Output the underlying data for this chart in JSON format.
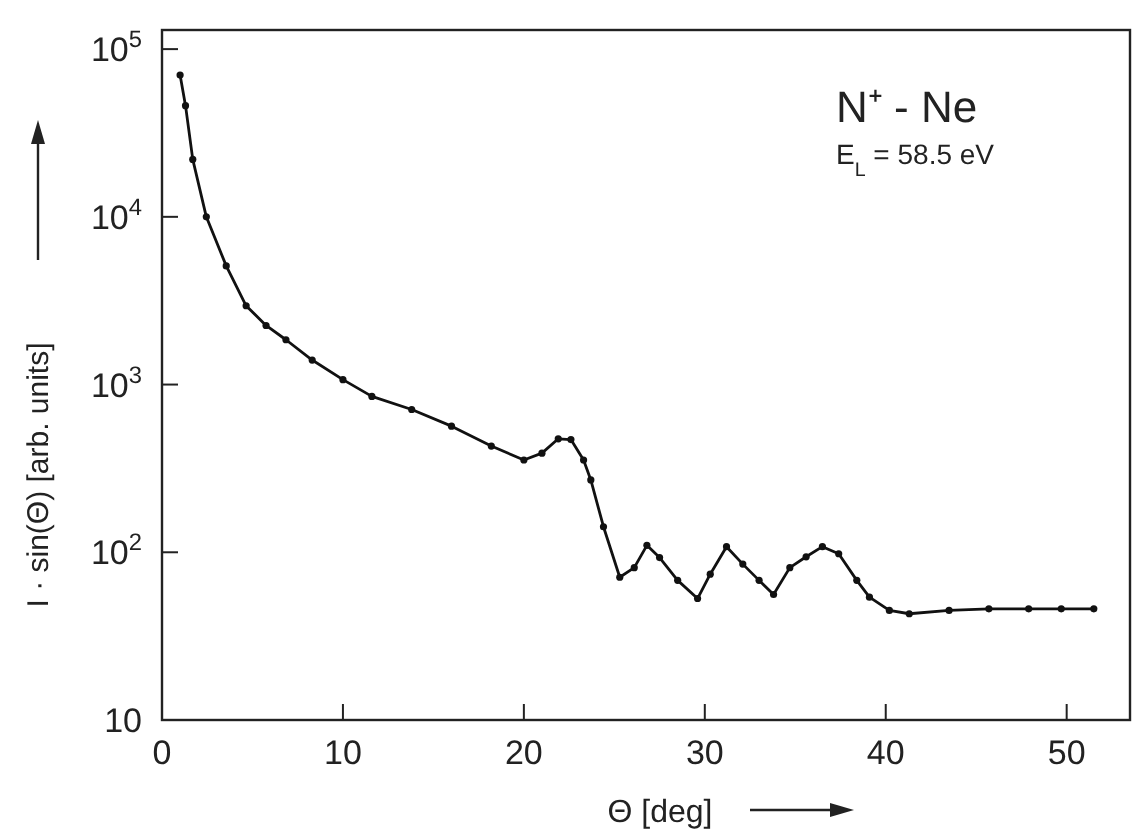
{
  "chart_data": {
    "type": "line",
    "xlabel": "Θ [deg]",
    "ylabel": "I · sin(Θ) [arb. units]",
    "log": "y",
    "xlim": [
      0,
      53.5
    ],
    "ylim": [
      10,
      130000
    ],
    "xticks": [
      0,
      10,
      20,
      30,
      40,
      50
    ],
    "yticks": [
      10,
      {
        "value": 100,
        "label": "10$^{2}$"
      },
      {
        "value": 1000,
        "label": "10$^{3}$"
      },
      {
        "value": 10000,
        "label": "10$^{4}$"
      },
      {
        "value": 100000,
        "label": "10$^{5}$"
      }
    ],
    "annotations": [
      "N⁺ - Ne",
      "E$_{L}$ = 58.5 eV"
    ],
    "marker": "circle",
    "series": [
      {
        "color": "#111111",
        "x": [
          1.0,
          1.3,
          1.7,
          2.45,
          3.55,
          4.65,
          5.75,
          6.85,
          8.3,
          10,
          11.6,
          13.8,
          16,
          18.2,
          20,
          21,
          21.9,
          22.6,
          23.3,
          23.7,
          24.4,
          25.3,
          26.1,
          26.8,
          27.5,
          28.5,
          29.6,
          30.3,
          31.2,
          32.1,
          33,
          33.8,
          34.7,
          35.6,
          36.5,
          37.4,
          38.4,
          39.1,
          40.2,
          41.3,
          43.5,
          45.7,
          47.9,
          49.7,
          51.5
        ],
        "values": [
          70000,
          46000,
          22000,
          10000,
          5100,
          2950,
          2250,
          1850,
          1400,
          1070,
          850,
          710,
          565,
          430,
          355,
          390,
          475,
          470,
          355,
          270,
          142,
          71,
          81,
          110,
          93,
          68,
          53,
          74,
          108,
          85,
          68,
          56,
          81,
          94,
          108,
          98,
          68,
          54,
          45,
          43,
          45,
          46,
          46,
          46,
          46
        ]
      }
    ]
  }
}
